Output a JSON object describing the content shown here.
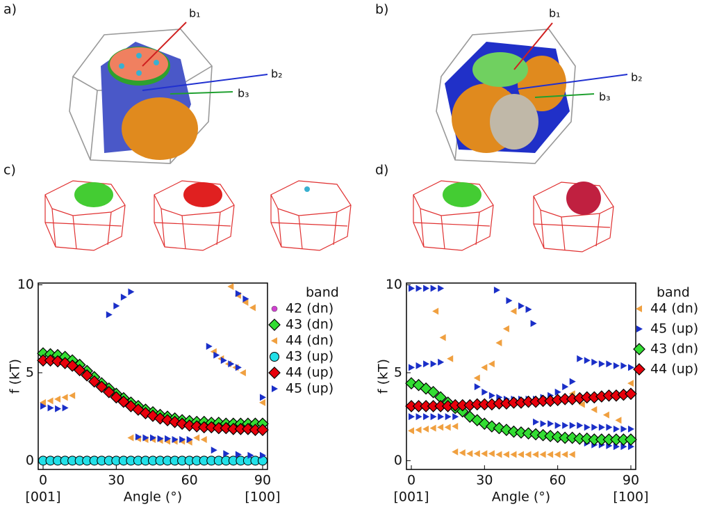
{
  "figure": {
    "panels": [
      {
        "label": "a)",
        "vectors": [
          "b₁",
          "b₂",
          "b₃"
        ]
      },
      {
        "label": "b)",
        "vectors": [
          "b₁",
          "b₂",
          "b₃"
        ]
      },
      {
        "label": "c)"
      },
      {
        "label": "d)"
      }
    ]
  },
  "chart_data": [
    {
      "type": "scatter",
      "xlabel": "Angle (°)",
      "ylabel": "f (kT)",
      "x_end_labels": [
        "[001]",
        "[100]"
      ],
      "legend_title": "band",
      "xlim": [
        -2,
        92
      ],
      "ylim": [
        -0.5,
        10.1
      ],
      "xticks": [
        0,
        30,
        60,
        90
      ],
      "yticks": [
        0,
        5,
        10
      ],
      "series": [
        {
          "name": "42 (dn)",
          "color": "#d040d0",
          "marker": "dot",
          "x": [],
          "values": []
        },
        {
          "name": "43 (dn)",
          "color": "#33dd33",
          "marker": "diamond",
          "x": [
            0,
            3,
            6,
            9,
            12,
            15,
            18,
            21,
            24,
            27,
            30,
            33,
            36,
            39,
            42,
            45,
            48,
            51,
            54,
            57,
            60,
            63,
            66,
            69,
            72,
            75,
            78,
            81,
            84,
            87,
            90
          ],
          "values": [
            6.1,
            6.05,
            6.0,
            5.9,
            5.7,
            5.45,
            5.1,
            4.75,
            4.4,
            4.1,
            3.8,
            3.55,
            3.3,
            3.1,
            2.9,
            2.75,
            2.6,
            2.5,
            2.4,
            2.3,
            2.25,
            2.2,
            2.2,
            2.15,
            2.15,
            2.1,
            2.1,
            2.1,
            2.1,
            2.1,
            2.1
          ]
        },
        {
          "name": "44 (dn)",
          "color": "#f0a040",
          "marker": "triangle-left",
          "x": [
            0,
            3,
            6,
            9,
            12,
            36,
            39,
            42,
            45,
            48,
            51,
            54,
            57,
            60,
            63,
            66,
            77,
            80,
            83,
            86,
            70,
            73,
            76,
            79,
            82,
            90
          ],
          "values": [
            3.3,
            3.4,
            3.5,
            3.6,
            3.7,
            1.3,
            1.25,
            1.2,
            1.2,
            1.15,
            1.1,
            1.1,
            1.1,
            1.05,
            1.3,
            1.2,
            9.9,
            9.4,
            9.0,
            8.7,
            6.2,
            5.8,
            5.5,
            5.3,
            5.0,
            3.3
          ]
        },
        {
          "name": "43 (up)",
          "color": "#22e0e8",
          "marker": "circle",
          "x": [
            0,
            3,
            6,
            9,
            12,
            15,
            18,
            21,
            24,
            27,
            30,
            33,
            36,
            39,
            42,
            45,
            48,
            51,
            54,
            57,
            60,
            63,
            66,
            69,
            72,
            75,
            78,
            81,
            84,
            87,
            90
          ],
          "values": [
            0,
            0,
            0,
            0,
            0,
            0,
            0,
            0,
            0,
            0,
            0,
            0,
            0,
            0,
            0,
            0,
            0,
            0,
            0,
            0,
            0,
            0,
            0,
            0,
            0,
            0,
            0,
            0,
            0,
            0,
            0
          ]
        },
        {
          "name": "44 (up)",
          "color": "#e8000b",
          "marker": "diamond",
          "x": [
            0,
            3,
            6,
            9,
            12,
            15,
            18,
            21,
            24,
            27,
            30,
            33,
            36,
            39,
            42,
            45,
            48,
            51,
            54,
            57,
            60,
            63,
            66,
            69,
            72,
            75,
            78,
            81,
            84,
            87,
            90
          ],
          "values": [
            5.7,
            5.7,
            5.65,
            5.55,
            5.4,
            5.15,
            4.85,
            4.5,
            4.2,
            3.9,
            3.6,
            3.35,
            3.1,
            2.9,
            2.7,
            2.55,
            2.4,
            2.3,
            2.2,
            2.1,
            2.0,
            1.95,
            1.9,
            1.9,
            1.85,
            1.85,
            1.8,
            1.8,
            1.8,
            1.75,
            1.75
          ]
        },
        {
          "name": "45 (up)",
          "color": "#1a2fc8",
          "marker": "triangle-right",
          "x": [
            0,
            3,
            6,
            9,
            27,
            30,
            33,
            36,
            39,
            42,
            45,
            48,
            51,
            54,
            57,
            60,
            68,
            71,
            74,
            77,
            80,
            80,
            83,
            70,
            75,
            80,
            85,
            90,
            90
          ],
          "values": [
            3.1,
            3.0,
            2.95,
            3.0,
            8.3,
            8.8,
            9.3,
            9.6,
            1.35,
            1.3,
            1.3,
            1.25,
            1.25,
            1.2,
            1.2,
            1.2,
            6.5,
            6.0,
            5.7,
            5.5,
            5.3,
            9.5,
            9.2,
            0.6,
            0.4,
            0.35,
            0.3,
            0.3,
            3.6
          ]
        }
      ]
    },
    {
      "type": "scatter",
      "xlabel": "Angle (°)",
      "ylabel": "f (kT)",
      "x_end_labels": [
        "[001]",
        "[100]"
      ],
      "legend_title": "band",
      "xlim": [
        -2,
        92
      ],
      "ylim": [
        -0.5,
        10.1
      ],
      "xticks": [
        0,
        30,
        60,
        90
      ],
      "yticks": [
        0,
        5,
        10
      ],
      "series": [
        {
          "name": "44 (dn)",
          "color": "#f0a040",
          "marker": "triangle-left",
          "x": [
            0,
            3,
            6,
            9,
            12,
            15,
            18,
            10,
            13,
            16,
            27,
            30,
            33,
            36,
            39,
            42,
            18,
            21,
            24,
            27,
            30,
            33,
            36,
            39,
            42,
            45,
            48,
            51,
            54,
            57,
            60,
            63,
            66,
            66,
            70,
            75,
            80,
            85,
            90
          ],
          "values": [
            1.7,
            1.75,
            1.8,
            1.85,
            1.9,
            1.9,
            1.95,
            8.5,
            7.0,
            5.8,
            4.7,
            5.3,
            5.5,
            6.7,
            7.5,
            8.5,
            0.5,
            0.45,
            0.4,
            0.4,
            0.4,
            0.4,
            0.35,
            0.35,
            0.35,
            0.35,
            0.35,
            0.35,
            0.35,
            0.35,
            0.35,
            0.35,
            0.35,
            3.8,
            3.2,
            2.9,
            2.6,
            2.3,
            4.4
          ]
        },
        {
          "name": "45 (up)",
          "color": "#1a2fc8",
          "marker": "triangle-right",
          "x": [
            0,
            3,
            6,
            9,
            12,
            35,
            40,
            45,
            48,
            50,
            0,
            3,
            6,
            9,
            12,
            27,
            30,
            33,
            36,
            39,
            42,
            45,
            48,
            51,
            54,
            57,
            60,
            63,
            66,
            69,
            72,
            75,
            78,
            81,
            84,
            87,
            90,
            0,
            3,
            6,
            9,
            12,
            15,
            18,
            51,
            54,
            57,
            60,
            63,
            66,
            69,
            72,
            75,
            78,
            81,
            84,
            87,
            90,
            72,
            75,
            78,
            81,
            84,
            87,
            90
          ],
          "values": [
            9.8,
            9.8,
            9.8,
            9.8,
            9.8,
            9.7,
            9.1,
            8.8,
            8.6,
            7.8,
            5.3,
            5.4,
            5.5,
            5.5,
            5.6,
            4.2,
            3.9,
            3.7,
            3.6,
            3.5,
            3.5,
            3.5,
            3.5,
            3.5,
            3.6,
            3.7,
            3.9,
            4.2,
            4.5,
            5.8,
            5.7,
            5.6,
            5.5,
            5.5,
            5.4,
            5.4,
            5.3,
            2.5,
            2.5,
            2.5,
            2.5,
            2.5,
            2.5,
            2.5,
            2.2,
            2.1,
            2.1,
            2.0,
            2.0,
            2.0,
            2.0,
            1.9,
            1.9,
            1.9,
            1.9,
            1.8,
            1.8,
            1.8,
            1.0,
            0.9,
            0.9,
            0.85,
            0.8,
            0.8,
            0.8
          ]
        },
        {
          "name": "43 (dn)",
          "color": "#33dd33",
          "marker": "diamond",
          "x": [
            0,
            3,
            6,
            9,
            12,
            15,
            18,
            21,
            24,
            27,
            30,
            33,
            36,
            39,
            42,
            45,
            48,
            51,
            54,
            57,
            60,
            63,
            66,
            69,
            72,
            75,
            78,
            81,
            84,
            87,
            90
          ],
          "values": [
            4.4,
            4.3,
            4.1,
            3.9,
            3.6,
            3.3,
            3.0,
            2.8,
            2.5,
            2.3,
            2.1,
            1.95,
            1.85,
            1.75,
            1.65,
            1.6,
            1.55,
            1.5,
            1.45,
            1.4,
            1.35,
            1.3,
            1.3,
            1.25,
            1.25,
            1.2,
            1.2,
            1.2,
            1.2,
            1.2,
            1.2
          ]
        },
        {
          "name": "44 (up)",
          "color": "#e8000b",
          "marker": "diamond",
          "x": [
            0,
            3,
            6,
            9,
            12,
            15,
            18,
            21,
            24,
            27,
            30,
            33,
            36,
            39,
            42,
            45,
            48,
            51,
            54,
            57,
            60,
            63,
            66,
            69,
            72,
            75,
            78,
            81,
            84,
            87,
            90
          ],
          "values": [
            3.1,
            3.1,
            3.1,
            3.1,
            3.1,
            3.1,
            3.15,
            3.15,
            3.15,
            3.2,
            3.2,
            3.2,
            3.25,
            3.25,
            3.3,
            3.3,
            3.35,
            3.35,
            3.4,
            3.4,
            3.45,
            3.5,
            3.5,
            3.55,
            3.6,
            3.6,
            3.65,
            3.7,
            3.7,
            3.75,
            3.8
          ]
        }
      ]
    }
  ]
}
